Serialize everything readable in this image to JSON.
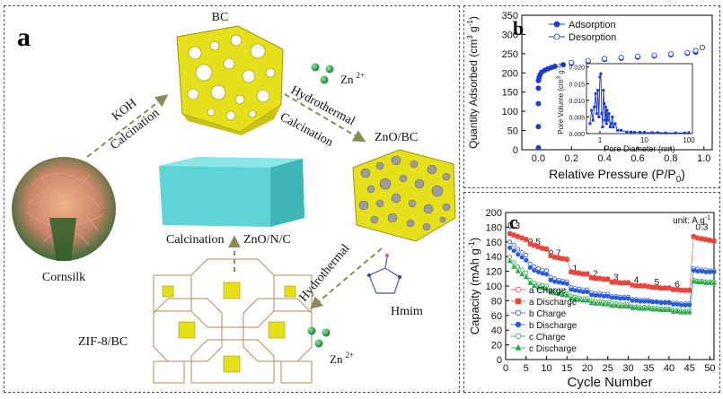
{
  "panel_a": {
    "letter": "a",
    "labels": {
      "bc": "BC",
      "koh": "KOH",
      "calcination_left": "Calcination",
      "zn_top": "Zn",
      "zn_top_sup": "2+",
      "hydrothermal_top": "Hydrothermal",
      "calcination_top": "Calcination",
      "zno_bc": "ZnO/BC",
      "cornsilk": "Cornsilk",
      "calcination_mid": "Calcination",
      "zno_n_c": "ZnO/N/C",
      "hydrothermal_right": "Hydrothermal",
      "hmim": "Hmim",
      "zn_bottom": "Zn",
      "zn_bottom_sup": "2+",
      "zif8_bc": "ZIF-8/BC"
    },
    "colors": {
      "bc_yellow": "#e6e01c",
      "zno_n_c_cyan": "#5fd4d6",
      "zn_dot": "#2aa84a",
      "arrow": "#8a8a5a"
    }
  },
  "panel_b": {
    "letter": "b",
    "chart_data": {
      "type": "scatter",
      "xlabel": "Relative Pressure (P/P",
      "xlabel_sub": "0",
      "xlabel_end": ")",
      "ylabel": "Quantity Adsorbed (cm",
      "ylabel_sup1": "3",
      "ylabel_mid": " g",
      "ylabel_sup2": "-1",
      "ylabel_end": ")",
      "xlim": [
        -0.1,
        1.05
      ],
      "ylim": [
        0,
        350
      ],
      "xticks": [
        "0.0",
        "0.2",
        "0.4",
        "0.6",
        "0.8",
        "1.0"
      ],
      "yticks": [
        "0",
        "50",
        "100",
        "150",
        "200",
        "250",
        "300",
        "350"
      ],
      "legend": [
        "Adsorption",
        "Desorption"
      ],
      "legend_position": "top-left",
      "series": [
        {
          "name": "Adsorption",
          "style": "filled",
          "x": [
            0.0,
            0.0,
            0.0,
            0.0,
            0.0,
            0.005,
            0.01,
            0.02,
            0.04,
            0.06,
            0.08,
            0.1,
            0.15,
            0.2,
            0.3,
            0.4,
            0.5,
            0.6,
            0.7,
            0.8,
            0.9,
            0.95,
            0.99
          ],
          "y": [
            5,
            60,
            120,
            160,
            180,
            188,
            195,
            202,
            207,
            211,
            214,
            217,
            221,
            225,
            230,
            235,
            238,
            241,
            244,
            247,
            251,
            254,
            266
          ]
        },
        {
          "name": "Desorption",
          "style": "hollow",
          "x": [
            0.99,
            0.95,
            0.9,
            0.8,
            0.7,
            0.6,
            0.5,
            0.4,
            0.3,
            0.2
          ],
          "y": [
            266,
            258,
            253,
            249,
            246,
            243,
            240,
            237,
            232,
            227
          ]
        }
      ],
      "inset": {
        "xlabel": "Pore Diameter (nm)",
        "ylabel": "Pore Volume (cm",
        "ylabel_sup1": "3",
        "ylabel_mid": " g",
        "ylabel_sup2": "-1",
        "ylabel_end": ")",
        "xscale": "log",
        "xlim": [
          0.5,
          120
        ],
        "ylim": [
          0,
          0.021
        ],
        "xticks": [
          "1",
          "10",
          "100"
        ],
        "yticks": [
          "0.000",
          "0.005",
          "0.010",
          "0.015",
          "0.020"
        ],
        "x": [
          0.6,
          0.65,
          0.7,
          0.75,
          0.8,
          0.85,
          0.9,
          0.95,
          1.0,
          1.05,
          1.1,
          1.15,
          1.2,
          1.25,
          1.3,
          1.35,
          1.4,
          1.45,
          1.5,
          1.6,
          1.7,
          1.8,
          1.9,
          2.0,
          2.2,
          2.5,
          3,
          4,
          5,
          6,
          8,
          10,
          15,
          20,
          30,
          50,
          80,
          100
        ],
        "y": [
          0.003,
          0.007,
          0.004,
          0.008,
          0.012,
          0.006,
          0.013,
          0.005,
          0.017,
          0.018,
          0.006,
          0.002,
          0.013,
          0.009,
          0.004,
          0.008,
          0.003,
          0.007,
          0.004,
          0.006,
          0.002,
          0.003,
          0.005,
          0.002,
          0.003,
          0.001,
          0.001,
          0.0005,
          0.0005,
          0.0004,
          0.0004,
          0.0003,
          0.0003,
          0.0003,
          0.0002,
          0.0002,
          0.0002,
          0.0002
        ]
      }
    }
  },
  "panel_c": {
    "letter": "c",
    "chart_data": {
      "type": "scatter",
      "xlabel": "Cycle Number",
      "ylabel": "Capacity (mAh g",
      "ylabel_sup": "-1",
      "ylabel_end": ")",
      "xlim": [
        0,
        51
      ],
      "ylim": [
        0,
        200
      ],
      "xticks": [
        "0",
        "5",
        "10",
        "15",
        "20",
        "25",
        "30",
        "35",
        "40",
        "45",
        "50"
      ],
      "yticks": [
        "0",
        "20",
        "40",
        "60",
        "80",
        "100",
        "120",
        "140",
        "160",
        "180",
        "200"
      ],
      "unit_label": "unit: A g",
      "unit_sup": "-1",
      "rate_labels": [
        {
          "text": "0.3",
          "x": 2,
          "y": 178
        },
        {
          "text": "0.5",
          "x": 7,
          "y": 156
        },
        {
          "text": "0.7",
          "x": 12,
          "y": 141
        },
        {
          "text": "1",
          "x": 17,
          "y": 120
        },
        {
          "text": "2",
          "x": 22,
          "y": 113
        },
        {
          "text": "3",
          "x": 27,
          "y": 108
        },
        {
          "text": "4",
          "x": 32,
          "y": 104
        },
        {
          "text": "5",
          "x": 37,
          "y": 101
        },
        {
          "text": "6",
          "x": 42,
          "y": 98
        },
        {
          "text": "0.3",
          "x": 48,
          "y": 176
        }
      ],
      "legend_position": "bottom-left",
      "series": [
        {
          "name": "a Charge",
          "marker": "circle-hollow",
          "color": "#e8463c",
          "values": [
            172,
            170,
            168,
            166,
            164,
            158,
            156,
            154,
            152,
            151,
            142,
            140,
            139,
            138,
            137,
            120,
            119,
            118,
            117,
            117,
            112,
            111,
            111,
            110,
            110,
            106,
            106,
            105,
            105,
            105,
            102,
            101,
            101,
            101,
            100,
            99,
            99,
            98,
            98,
            98,
            96,
            96,
            95,
            95,
            95,
            168,
            166,
            165,
            164,
            163,
            162
          ]
        },
        {
          "name": "a Discharge",
          "marker": "square-filled",
          "color": "#e8463c",
          "values": [
            171,
            169,
            167,
            165,
            163,
            157,
            155,
            153,
            151,
            150,
            141,
            139,
            138,
            137,
            136,
            119,
            118,
            117,
            116,
            116,
            111,
            110,
            110,
            109,
            109,
            105,
            105,
            104,
            104,
            104,
            101,
            100,
            100,
            100,
            99,
            98,
            98,
            97,
            97,
            97,
            95,
            95,
            94,
            94,
            94,
            167,
            165,
            164,
            163,
            162,
            161
          ]
        },
        {
          "name": "b Charge",
          "marker": "circle-hollow",
          "color": "#2a5bd7",
          "values": [
            160,
            156,
            150,
            146,
            142,
            130,
            126,
            124,
            122,
            121,
            112,
            110,
            108,
            107,
            106,
            98,
            97,
            96,
            95,
            95,
            91,
            90,
            90,
            89,
            89,
            86,
            86,
            85,
            85,
            85,
            82,
            82,
            81,
            81,
            81,
            79,
            79,
            78,
            78,
            78,
            77,
            77,
            76,
            76,
            76,
            124,
            123,
            122,
            122,
            121,
            121
          ]
        },
        {
          "name": "b Discharge",
          "marker": "circle-filled",
          "color": "#2a5bd7",
          "values": [
            152,
            148,
            143,
            139,
            135,
            125,
            121,
            119,
            117,
            116,
            108,
            106,
            105,
            104,
            103,
            95,
            94,
            93,
            92,
            92,
            88,
            87,
            87,
            86,
            86,
            84,
            84,
            83,
            83,
            83,
            80,
            80,
            79,
            79,
            79,
            78,
            78,
            77,
            77,
            77,
            75,
            75,
            74,
            74,
            74,
            121,
            120,
            120,
            119,
            119,
            119
          ]
        },
        {
          "name": "c Charge",
          "marker": "circle-hollow",
          "color": "#2aa84a",
          "values": [
            140,
            132,
            126,
            122,
            118,
            108,
            104,
            102,
            101,
            100,
            94,
            93,
            92,
            91,
            90,
            86,
            85,
            84,
            83,
            83,
            80,
            79,
            79,
            78,
            78,
            76,
            76,
            75,
            75,
            75,
            72,
            72,
            71,
            71,
            71,
            70,
            70,
            69,
            69,
            69,
            67,
            67,
            66,
            66,
            66,
            108,
            107,
            107,
            106,
            106,
            106
          ]
        },
        {
          "name": "c Discharge",
          "marker": "triangle-filled",
          "color": "#2aa84a",
          "values": [
            134,
            126,
            120,
            116,
            112,
            104,
            100,
            98,
            97,
            96,
            91,
            90,
            89,
            88,
            87,
            83,
            82,
            81,
            80,
            80,
            77,
            76,
            76,
            75,
            75,
            73,
            73,
            72,
            72,
            72,
            70,
            70,
            69,
            69,
            69,
            68,
            68,
            67,
            67,
            67,
            65,
            65,
            64,
            64,
            64,
            106,
            105,
            105,
            104,
            104,
            104
          ]
        }
      ]
    }
  }
}
